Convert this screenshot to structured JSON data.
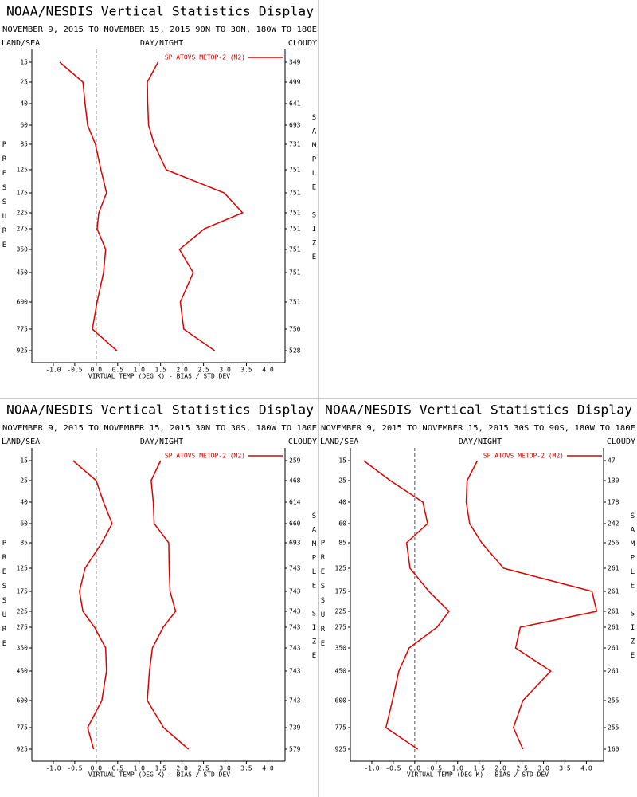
{
  "chart_data": [
    {
      "type": "line",
      "title": "NOAA/NESDIS Vertical Statistics Display",
      "subtitle": "NOVEMBER 9, 2015 TO NOVEMBER 15, 2015 90N TO 30N, 180W TO 180E",
      "left_label": "LAND/SEA",
      "center_label": "DAY/NIGHT",
      "right_label": "CLOUDY",
      "legend": "SP ATOVS METOP-2 (M2)",
      "y_label": "PRESSURE",
      "y2_label": "SAMPLE SIZE",
      "x_label": "VIRTUAL TEMP (DEG K) - BIAS / STD DEV",
      "categories": [
        "15",
        "25",
        "40",
        "60",
        "85",
        "125",
        "175",
        "225",
        "275",
        "350",
        "450",
        "600",
        "775",
        "925"
      ],
      "sample_size": [
        349,
        499,
        641,
        693,
        731,
        751,
        751,
        751,
        751,
        751,
        751,
        751,
        750,
        528
      ],
      "series": [
        {
          "color": "#e00000",
          "values": [
            -0.85,
            -0.31,
            -0.26,
            -0.2,
            -0.02,
            0.11,
            0.24,
            0.06,
            0.02,
            0.22,
            0.17,
            0.02,
            -0.09,
            0.48
          ]
        },
        {
          "color": "#e00000",
          "values": [
            1.44,
            1.19,
            1.2,
            1.22,
            1.35,
            1.63,
            2.98,
            3.41,
            2.52,
            1.94,
            2.26,
            1.96,
            2.04,
            2.76
          ]
        }
      ],
      "xlim": [
        -1.5,
        4.4
      ],
      "xticks": [
        {
          "value": -1,
          "label": "-1.0"
        },
        -0.5,
        {
          "value": 0,
          "label": "0.0"
        },
        0.5,
        {
          "value": 1,
          "label": "1.0"
        },
        1.5,
        {
          "value": 2,
          "label": "2.0"
        },
        2.5,
        {
          "value": 3,
          "label": "3.0"
        },
        3.5,
        {
          "value": 4,
          "label": "4.0"
        }
      ]
    },
    {
      "type": "line",
      "title": "NOAA/NESDIS Vertical Statistics Display",
      "subtitle": "NOVEMBER 9, 2015 TO NOVEMBER 15, 2015 30N TO 30S, 180W TO 180E",
      "left_label": "LAND/SEA",
      "center_label": "DAY/NIGHT",
      "right_label": "CLOUDY",
      "legend": "SP ATOVS METOP-2 (M2)",
      "y_label": "PRESSURE",
      "y2_label": "SAMPLE SIZE",
      "x_label": "VIRTUAL TEMP (DEG K) - BIAS / STD DEV",
      "categories": [
        "15",
        "25",
        "40",
        "60",
        "85",
        "125",
        "175",
        "225",
        "275",
        "350",
        "450",
        "600",
        "775",
        "925"
      ],
      "sample_size": [
        259,
        468,
        614,
        660,
        693,
        743,
        743,
        743,
        743,
        743,
        743,
        743,
        739,
        579
      ],
      "series": [
        {
          "color": "#e00000",
          "values": [
            -0.54,
            0,
            0.17,
            0.37,
            0.13,
            -0.26,
            -0.39,
            -0.31,
            -0.04,
            0.22,
            0.24,
            0.13,
            -0.2,
            -0.06
          ]
        },
        {
          "color": "#e00000",
          "values": [
            1.5,
            1.28,
            1.33,
            1.35,
            1.69,
            1.7,
            1.72,
            1.85,
            1.56,
            1.31,
            1.24,
            1.19,
            1.57,
            2.15
          ]
        }
      ],
      "xlim": [
        -1.5,
        4.4
      ],
      "xticks": [
        {
          "value": -1,
          "label": "-1.0"
        },
        -0.5,
        {
          "value": 0,
          "label": "0.0"
        },
        0.5,
        {
          "value": 1,
          "label": "1.0"
        },
        1.5,
        {
          "value": 2,
          "label": "2.0"
        },
        2.5,
        {
          "value": 3,
          "label": "3.0"
        },
        3.5,
        {
          "value": 4,
          "label": "4.0"
        }
      ]
    },
    {
      "type": "line",
      "title": "NOAA/NESDIS Vertical Statistics Display",
      "subtitle": "NOVEMBER 9, 2015 TO NOVEMBER 15, 2015 30S TO 90S, 180W TO 180E",
      "left_label": "LAND/SEA",
      "center_label": "DAY/NIGHT",
      "right_label": "CLOUDY",
      "legend": "SP ATOVS METOP-2 (M2)",
      "y_label": "PRESSURE",
      "y2_label": "SAMPLE SIZE",
      "x_label": "VIRTUAL TEMP (DEG K) - BIAS / STD DEV",
      "categories": [
        "15",
        "25",
        "40",
        "60",
        "85",
        "125",
        "175",
        "225",
        "275",
        "350",
        "450",
        "600",
        "775",
        "925"
      ],
      "sample_size": [
        47,
        130,
        178,
        242,
        256,
        261,
        261,
        261,
        261,
        261,
        261,
        255,
        255,
        160
      ],
      "series": [
        {
          "color": "#e00000",
          "values": [
            -1.19,
            -0.57,
            0.19,
            0.3,
            -0.19,
            -0.11,
            0.33,
            0.8,
            0.52,
            -0.13,
            -0.37,
            -0.52,
            -0.67,
            0.07
          ]
        },
        {
          "color": "#e00000",
          "values": [
            1.46,
            1.22,
            1.2,
            1.28,
            1.56,
            2.07,
            4.13,
            4.24,
            2.46,
            2.35,
            3.17,
            2.52,
            2.3,
            2.52
          ]
        }
      ],
      "xlim": [
        -1.5,
        4.4
      ],
      "xticks": [
        {
          "value": -1,
          "label": "-1.0"
        },
        -0.5,
        {
          "value": 0,
          "label": "0.0"
        },
        0.5,
        {
          "value": 1,
          "label": "1.0"
        },
        1.5,
        {
          "value": 2,
          "label": "2.0"
        },
        2.5,
        {
          "value": 3,
          "label": "3.0"
        },
        3.5,
        {
          "value": 4,
          "label": "4.0"
        }
      ]
    }
  ]
}
